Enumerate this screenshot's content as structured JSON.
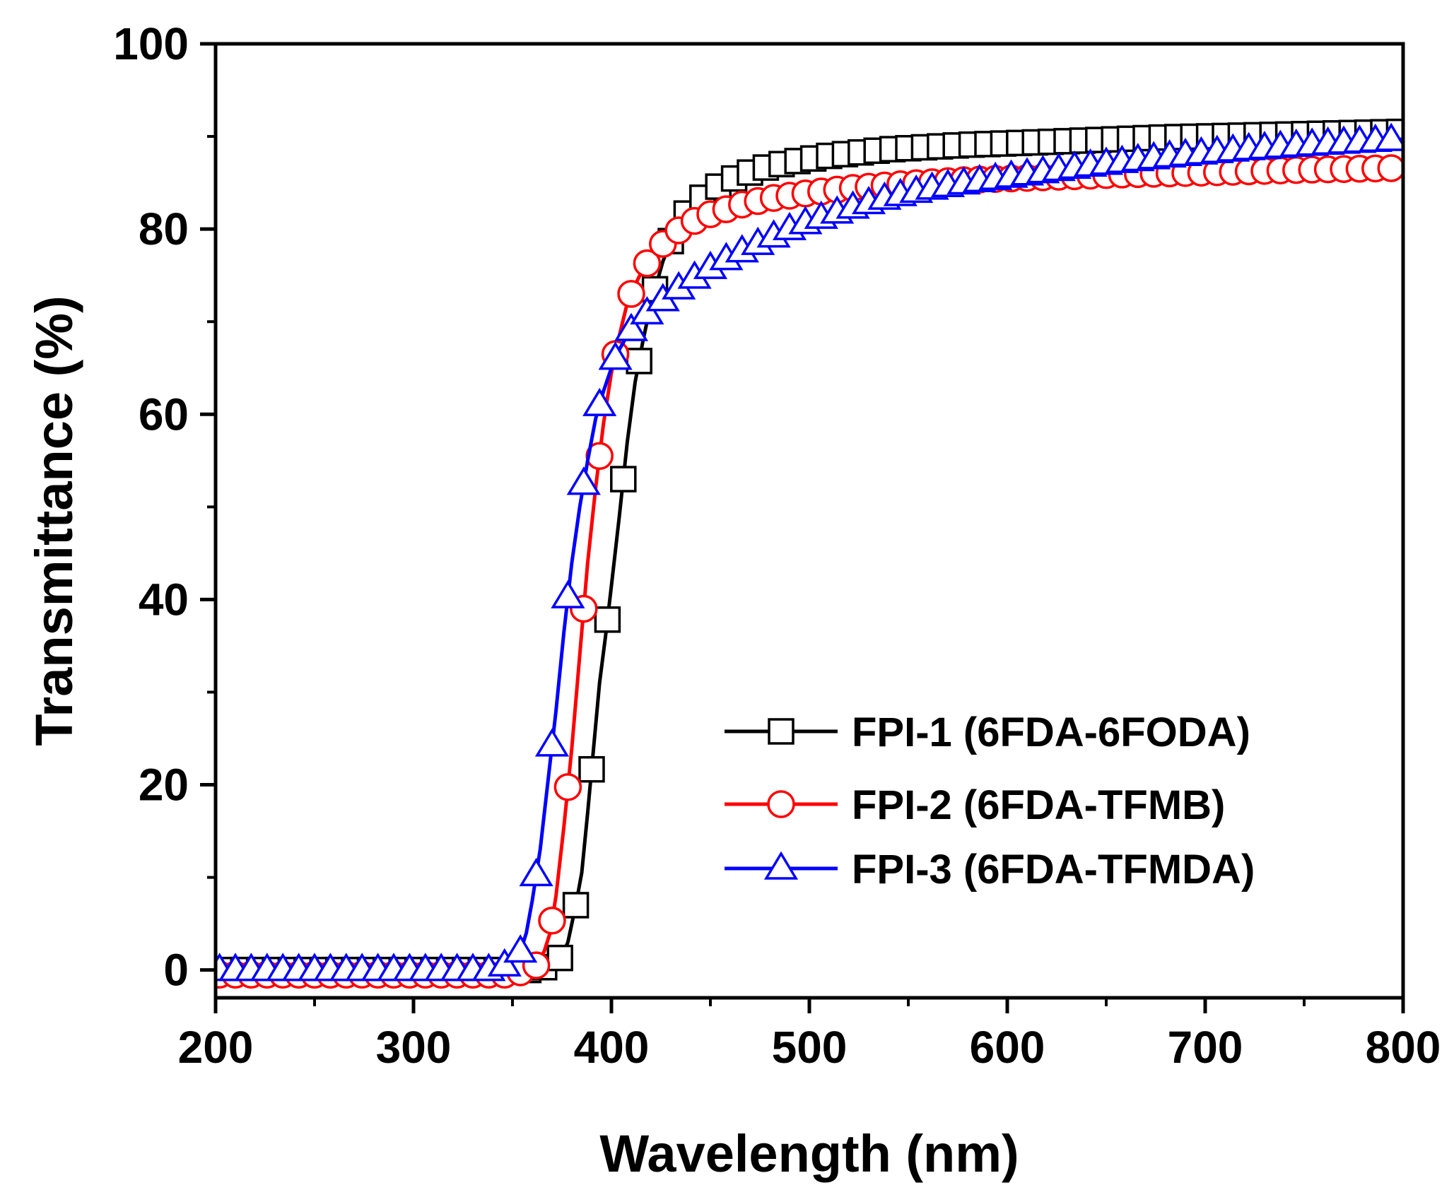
{
  "chart_data": {
    "type": "line",
    "title": "",
    "xlabel": "Wavelength (nm)",
    "ylabel": "Transmittance (%)",
    "xlim": [
      200,
      800
    ],
    "ylim": [
      -3,
      100
    ],
    "xticks": [
      200,
      300,
      400,
      500,
      600,
      700,
      800
    ],
    "yticks": [
      0,
      20,
      40,
      60,
      80,
      100
    ],
    "grid": false,
    "legend_position": "bottom-right",
    "series": [
      {
        "name": "FPI-1 (6FDA-6FODA)",
        "label": "FPI-1 (6FDA-6FODA)",
        "color": "#000000",
        "marker": "square",
        "marker_start": 206,
        "marker_step": 8,
        "points": [
          [
            200,
            0
          ],
          [
            360,
            0
          ],
          [
            370,
            0.5
          ],
          [
            375,
            1.5
          ],
          [
            378,
            3
          ],
          [
            382,
            7
          ],
          [
            385,
            10.5
          ],
          [
            388,
            17
          ],
          [
            391,
            24
          ],
          [
            394,
            31
          ],
          [
            397,
            36
          ],
          [
            400,
            41.5
          ],
          [
            404,
            49
          ],
          [
            408,
            57
          ],
          [
            412,
            63.5
          ],
          [
            416,
            68
          ],
          [
            420,
            72
          ],
          [
            426,
            76.5
          ],
          [
            432,
            79.8
          ],
          [
            440,
            82.3
          ],
          [
            450,
            84.1
          ],
          [
            460,
            85.3
          ],
          [
            475,
            86.5
          ],
          [
            490,
            87.2
          ],
          [
            510,
            87.9
          ],
          [
            540,
            88.6
          ],
          [
            580,
            89.1
          ],
          [
            620,
            89.4
          ],
          [
            680,
            89.9
          ],
          [
            740,
            90.2
          ],
          [
            800,
            90.5
          ]
        ]
      },
      {
        "name": "FPI-2 (6FDA-TFMB)",
        "label": "FPI-2 (6FDA-TFMB)",
        "color": "#ff0000",
        "marker": "circle",
        "marker_start": 202,
        "marker_step": 8,
        "points": [
          [
            200,
            -0.5
          ],
          [
            350,
            -0.5
          ],
          [
            358,
            0
          ],
          [
            362,
            0.5
          ],
          [
            366,
            2
          ],
          [
            369,
            4
          ],
          [
            372,
            8
          ],
          [
            376,
            15.5
          ],
          [
            380,
            24
          ],
          [
            384,
            34
          ],
          [
            388,
            44
          ],
          [
            392,
            52
          ],
          [
            396,
            59
          ],
          [
            400,
            64.5
          ],
          [
            404,
            68.5
          ],
          [
            408,
            72
          ],
          [
            412,
            74
          ],
          [
            416,
            75.7
          ],
          [
            422,
            77.5
          ],
          [
            430,
            79.3
          ],
          [
            440,
            80.7
          ],
          [
            450,
            81.6
          ],
          [
            465,
            82.6
          ],
          [
            480,
            83.3
          ],
          [
            500,
            83.9
          ],
          [
            520,
            84.4
          ],
          [
            550,
            84.9
          ],
          [
            580,
            85.3
          ],
          [
            620,
            85.6
          ],
          [
            660,
            85.9
          ],
          [
            700,
            86.1
          ],
          [
            750,
            86.4
          ],
          [
            800,
            86.6
          ]
        ]
      },
      {
        "name": "FPI-3 (6FDA-TFMDA)",
        "label": "FPI-3 (6FDA-TFMDA)",
        "color": "#0000ff",
        "marker": "triangle",
        "marker_start": 202,
        "marker_step": 8,
        "points": [
          [
            200,
            0
          ],
          [
            342,
            0
          ],
          [
            346,
            0.5
          ],
          [
            350,
            1
          ],
          [
            354,
            2
          ],
          [
            357,
            4
          ],
          [
            360,
            7.5
          ],
          [
            364,
            13
          ],
          [
            368,
            20.5
          ],
          [
            372,
            28
          ],
          [
            376,
            36.5
          ],
          [
            380,
            44
          ],
          [
            384,
            50
          ],
          [
            388,
            55
          ],
          [
            392,
            59.5
          ],
          [
            396,
            62.5
          ],
          [
            400,
            65
          ],
          [
            404,
            67
          ],
          [
            408,
            68.5
          ],
          [
            412,
            69.7
          ],
          [
            420,
            71.3
          ],
          [
            430,
            73
          ],
          [
            440,
            74.5
          ],
          [
            450,
            75.8
          ],
          [
            460,
            77
          ],
          [
            470,
            78
          ],
          [
            480,
            79
          ],
          [
            490,
            80
          ],
          [
            500,
            80.8
          ],
          [
            520,
            82.2
          ],
          [
            540,
            83.4
          ],
          [
            560,
            84.3
          ],
          [
            580,
            85
          ],
          [
            600,
            85.6
          ],
          [
            640,
            86.8
          ],
          [
            680,
            87.8
          ],
          [
            720,
            88.6
          ],
          [
            760,
            89.2
          ],
          [
            800,
            89.7
          ]
        ]
      }
    ]
  }
}
